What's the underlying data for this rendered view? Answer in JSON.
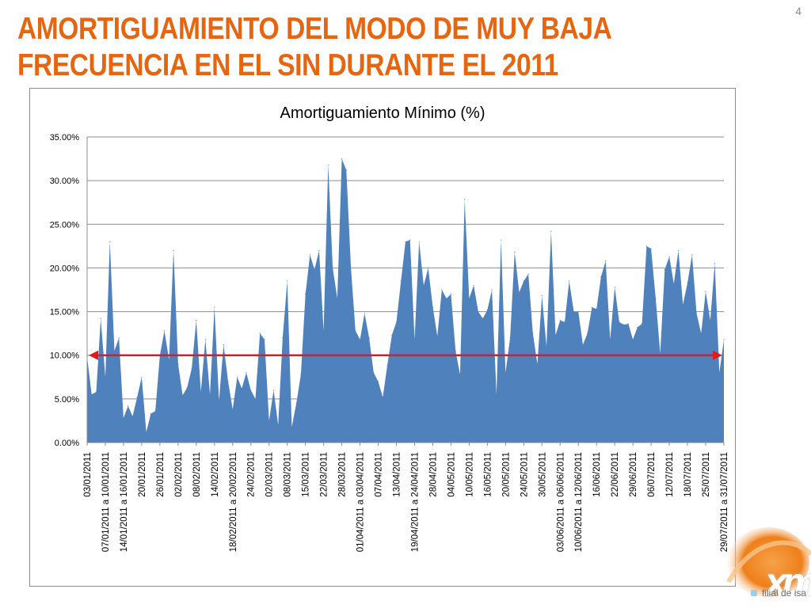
{
  "slide": {
    "title_line1": "AMORTIGUAMIENTO DEL MODO DE MUY BAJA",
    "title_line2": "FRECUENCIA EN EL SIN DURANTE EL 2011",
    "page_number": "4",
    "logo_text": "xm",
    "tagline": "filial de isa"
  },
  "colors": {
    "title": "#e8650f",
    "area": "#4f81bd",
    "reference_line": "#e31a1c",
    "gridline": "#8c8c8c"
  },
  "chart_data": {
    "type": "area",
    "title": "Amortiguamiento Mínimo (%)",
    "xlabel": "",
    "ylabel": "",
    "ylim": [
      0,
      35
    ],
    "yticks": [
      "0.00%",
      "5.00%",
      "10.00%",
      "15.00%",
      "20.00%",
      "25.00%",
      "30.00%",
      "35.00%"
    ],
    "grid": true,
    "legend": "none",
    "reference_line": {
      "value": 10,
      "style": "red double-headed arrow"
    },
    "x_tick_labels": [
      "03/01/2011",
      "07/01/2011 a 10/01/2011",
      "14/01/2011 a 16/01/2011",
      "20/01/2011",
      "26/01/2011",
      "02/02/2011",
      "08/02/2011",
      "14/02/2011",
      "18/02/2011 a 20/02/2011",
      "24/02/2011",
      "02/03/2011",
      "08/03/2011",
      "15/03/2011",
      "22/03/2011",
      "28/03/2011",
      "01/04/2011 a 03/04/2011",
      "07/04/2011",
      "13/04/2011",
      "19/04/2011 a 24/04/2011",
      "28/04/2011",
      "04/05/2011",
      "10/05/2011",
      "16/05/2011",
      "20/05/2011",
      "24/05/2011",
      "30/05/2011",
      "03/06/2011 a 06/06/2011",
      "10/06/2011 a 12/06/2011",
      "16/06/2011",
      "22/06/2011",
      "29/06/2011",
      "06/07/2011",
      "12/07/2011",
      "18/07/2011",
      "25/07/2011",
      "29/07/2011 a 31/07/2011"
    ],
    "series": [
      {
        "name": "Amortiguamiento Mínimo (%)",
        "values": [
          9.8,
          5.5,
          5.8,
          14.2,
          7.5,
          23.0,
          10.5,
          12.0,
          2.8,
          4.2,
          3.0,
          5.2,
          7.5,
          1.2,
          3.3,
          3.6,
          10.0,
          12.8,
          9.5,
          22.0,
          9.0,
          5.4,
          6.3,
          8.5,
          14.0,
          5.8,
          11.8,
          5.5,
          15.5,
          4.8,
          11.2,
          7.0,
          3.8,
          7.5,
          6.2,
          8.0,
          6.0,
          5.0,
          12.5,
          11.8,
          2.5,
          6.0,
          2.0,
          12.0,
          18.5,
          1.8,
          4.5,
          7.8,
          17.0,
          21.5,
          19.8,
          22.0,
          12.8,
          31.8,
          20.0,
          16.5,
          32.5,
          31.2,
          20.0,
          12.8,
          11.8,
          14.8,
          12.0,
          8.0,
          7.0,
          5.2,
          8.8,
          12.3,
          13.8,
          18.5,
          23.0,
          23.2,
          11.8,
          23.0,
          18.0,
          20.0,
          15.5,
          12.2,
          17.5,
          16.5,
          17.0,
          10.5,
          7.8,
          27.8,
          16.5,
          18.0,
          15.0,
          14.2,
          15.2,
          17.5,
          5.5,
          23.2,
          8.0,
          12.0,
          21.8,
          17.2,
          18.5,
          19.3,
          12.5,
          9.0,
          16.8,
          11.0,
          24.2,
          12.3,
          14.0,
          13.8,
          18.5,
          15.0,
          15.0,
          11.2,
          12.5,
          15.5,
          15.3,
          19.0,
          20.8,
          11.8,
          17.8,
          13.8,
          13.5,
          13.6,
          11.8,
          13.2,
          13.6,
          22.5,
          22.2,
          16.5,
          10.2,
          19.8,
          21.3,
          18.2,
          22.0,
          15.8,
          18.3,
          21.5,
          14.8,
          12.5,
          17.3,
          14.0,
          20.5,
          8.0,
          11.8
        ]
      }
    ]
  }
}
